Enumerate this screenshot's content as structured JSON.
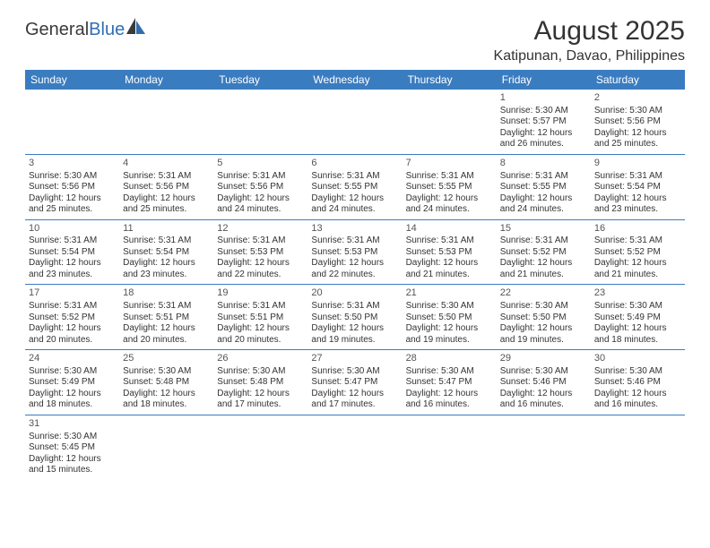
{
  "brand": {
    "part1": "General",
    "part2": "Blue"
  },
  "title": "August 2025",
  "location": "Katipunan, Davao, Philippines",
  "colors": {
    "header_bg": "#3a7cc0",
    "header_text": "#ffffff",
    "row_border": "#3a7cc0",
    "body_text": "#333333",
    "brand_dark": "#3a3a3a",
    "brand_blue": "#2f6fb0",
    "background": "#ffffff"
  },
  "typography": {
    "title_fontsize": 30,
    "location_fontsize": 16,
    "header_fontsize": 12,
    "cell_fontsize": 10,
    "daynum_fontsize": 11
  },
  "daysOfWeek": [
    "Sunday",
    "Monday",
    "Tuesday",
    "Wednesday",
    "Thursday",
    "Friday",
    "Saturday"
  ],
  "calendar": {
    "type": "table",
    "columns": 7,
    "rows": [
      [
        null,
        null,
        null,
        null,
        null,
        {
          "n": "1",
          "sr": "Sunrise: 5:30 AM",
          "ss": "Sunset: 5:57 PM",
          "d1": "Daylight: 12 hours",
          "d2": "and 26 minutes."
        },
        {
          "n": "2",
          "sr": "Sunrise: 5:30 AM",
          "ss": "Sunset: 5:56 PM",
          "d1": "Daylight: 12 hours",
          "d2": "and 25 minutes."
        }
      ],
      [
        {
          "n": "3",
          "sr": "Sunrise: 5:30 AM",
          "ss": "Sunset: 5:56 PM",
          "d1": "Daylight: 12 hours",
          "d2": "and 25 minutes."
        },
        {
          "n": "4",
          "sr": "Sunrise: 5:31 AM",
          "ss": "Sunset: 5:56 PM",
          "d1": "Daylight: 12 hours",
          "d2": "and 25 minutes."
        },
        {
          "n": "5",
          "sr": "Sunrise: 5:31 AM",
          "ss": "Sunset: 5:56 PM",
          "d1": "Daylight: 12 hours",
          "d2": "and 24 minutes."
        },
        {
          "n": "6",
          "sr": "Sunrise: 5:31 AM",
          "ss": "Sunset: 5:55 PM",
          "d1": "Daylight: 12 hours",
          "d2": "and 24 minutes."
        },
        {
          "n": "7",
          "sr": "Sunrise: 5:31 AM",
          "ss": "Sunset: 5:55 PM",
          "d1": "Daylight: 12 hours",
          "d2": "and 24 minutes."
        },
        {
          "n": "8",
          "sr": "Sunrise: 5:31 AM",
          "ss": "Sunset: 5:55 PM",
          "d1": "Daylight: 12 hours",
          "d2": "and 24 minutes."
        },
        {
          "n": "9",
          "sr": "Sunrise: 5:31 AM",
          "ss": "Sunset: 5:54 PM",
          "d1": "Daylight: 12 hours",
          "d2": "and 23 minutes."
        }
      ],
      [
        {
          "n": "10",
          "sr": "Sunrise: 5:31 AM",
          "ss": "Sunset: 5:54 PM",
          "d1": "Daylight: 12 hours",
          "d2": "and 23 minutes."
        },
        {
          "n": "11",
          "sr": "Sunrise: 5:31 AM",
          "ss": "Sunset: 5:54 PM",
          "d1": "Daylight: 12 hours",
          "d2": "and 23 minutes."
        },
        {
          "n": "12",
          "sr": "Sunrise: 5:31 AM",
          "ss": "Sunset: 5:53 PM",
          "d1": "Daylight: 12 hours",
          "d2": "and 22 minutes."
        },
        {
          "n": "13",
          "sr": "Sunrise: 5:31 AM",
          "ss": "Sunset: 5:53 PM",
          "d1": "Daylight: 12 hours",
          "d2": "and 22 minutes."
        },
        {
          "n": "14",
          "sr": "Sunrise: 5:31 AM",
          "ss": "Sunset: 5:53 PM",
          "d1": "Daylight: 12 hours",
          "d2": "and 21 minutes."
        },
        {
          "n": "15",
          "sr": "Sunrise: 5:31 AM",
          "ss": "Sunset: 5:52 PM",
          "d1": "Daylight: 12 hours",
          "d2": "and 21 minutes."
        },
        {
          "n": "16",
          "sr": "Sunrise: 5:31 AM",
          "ss": "Sunset: 5:52 PM",
          "d1": "Daylight: 12 hours",
          "d2": "and 21 minutes."
        }
      ],
      [
        {
          "n": "17",
          "sr": "Sunrise: 5:31 AM",
          "ss": "Sunset: 5:52 PM",
          "d1": "Daylight: 12 hours",
          "d2": "and 20 minutes."
        },
        {
          "n": "18",
          "sr": "Sunrise: 5:31 AM",
          "ss": "Sunset: 5:51 PM",
          "d1": "Daylight: 12 hours",
          "d2": "and 20 minutes."
        },
        {
          "n": "19",
          "sr": "Sunrise: 5:31 AM",
          "ss": "Sunset: 5:51 PM",
          "d1": "Daylight: 12 hours",
          "d2": "and 20 minutes."
        },
        {
          "n": "20",
          "sr": "Sunrise: 5:31 AM",
          "ss": "Sunset: 5:50 PM",
          "d1": "Daylight: 12 hours",
          "d2": "and 19 minutes."
        },
        {
          "n": "21",
          "sr": "Sunrise: 5:30 AM",
          "ss": "Sunset: 5:50 PM",
          "d1": "Daylight: 12 hours",
          "d2": "and 19 minutes."
        },
        {
          "n": "22",
          "sr": "Sunrise: 5:30 AM",
          "ss": "Sunset: 5:50 PM",
          "d1": "Daylight: 12 hours",
          "d2": "and 19 minutes."
        },
        {
          "n": "23",
          "sr": "Sunrise: 5:30 AM",
          "ss": "Sunset: 5:49 PM",
          "d1": "Daylight: 12 hours",
          "d2": "and 18 minutes."
        }
      ],
      [
        {
          "n": "24",
          "sr": "Sunrise: 5:30 AM",
          "ss": "Sunset: 5:49 PM",
          "d1": "Daylight: 12 hours",
          "d2": "and 18 minutes."
        },
        {
          "n": "25",
          "sr": "Sunrise: 5:30 AM",
          "ss": "Sunset: 5:48 PM",
          "d1": "Daylight: 12 hours",
          "d2": "and 18 minutes."
        },
        {
          "n": "26",
          "sr": "Sunrise: 5:30 AM",
          "ss": "Sunset: 5:48 PM",
          "d1": "Daylight: 12 hours",
          "d2": "and 17 minutes."
        },
        {
          "n": "27",
          "sr": "Sunrise: 5:30 AM",
          "ss": "Sunset: 5:47 PM",
          "d1": "Daylight: 12 hours",
          "d2": "and 17 minutes."
        },
        {
          "n": "28",
          "sr": "Sunrise: 5:30 AM",
          "ss": "Sunset: 5:47 PM",
          "d1": "Daylight: 12 hours",
          "d2": "and 16 minutes."
        },
        {
          "n": "29",
          "sr": "Sunrise: 5:30 AM",
          "ss": "Sunset: 5:46 PM",
          "d1": "Daylight: 12 hours",
          "d2": "and 16 minutes."
        },
        {
          "n": "30",
          "sr": "Sunrise: 5:30 AM",
          "ss": "Sunset: 5:46 PM",
          "d1": "Daylight: 12 hours",
          "d2": "and 16 minutes."
        }
      ],
      [
        {
          "n": "31",
          "sr": "Sunrise: 5:30 AM",
          "ss": "Sunset: 5:45 PM",
          "d1": "Daylight: 12 hours",
          "d2": "and 15 minutes."
        },
        null,
        null,
        null,
        null,
        null,
        null
      ]
    ]
  }
}
